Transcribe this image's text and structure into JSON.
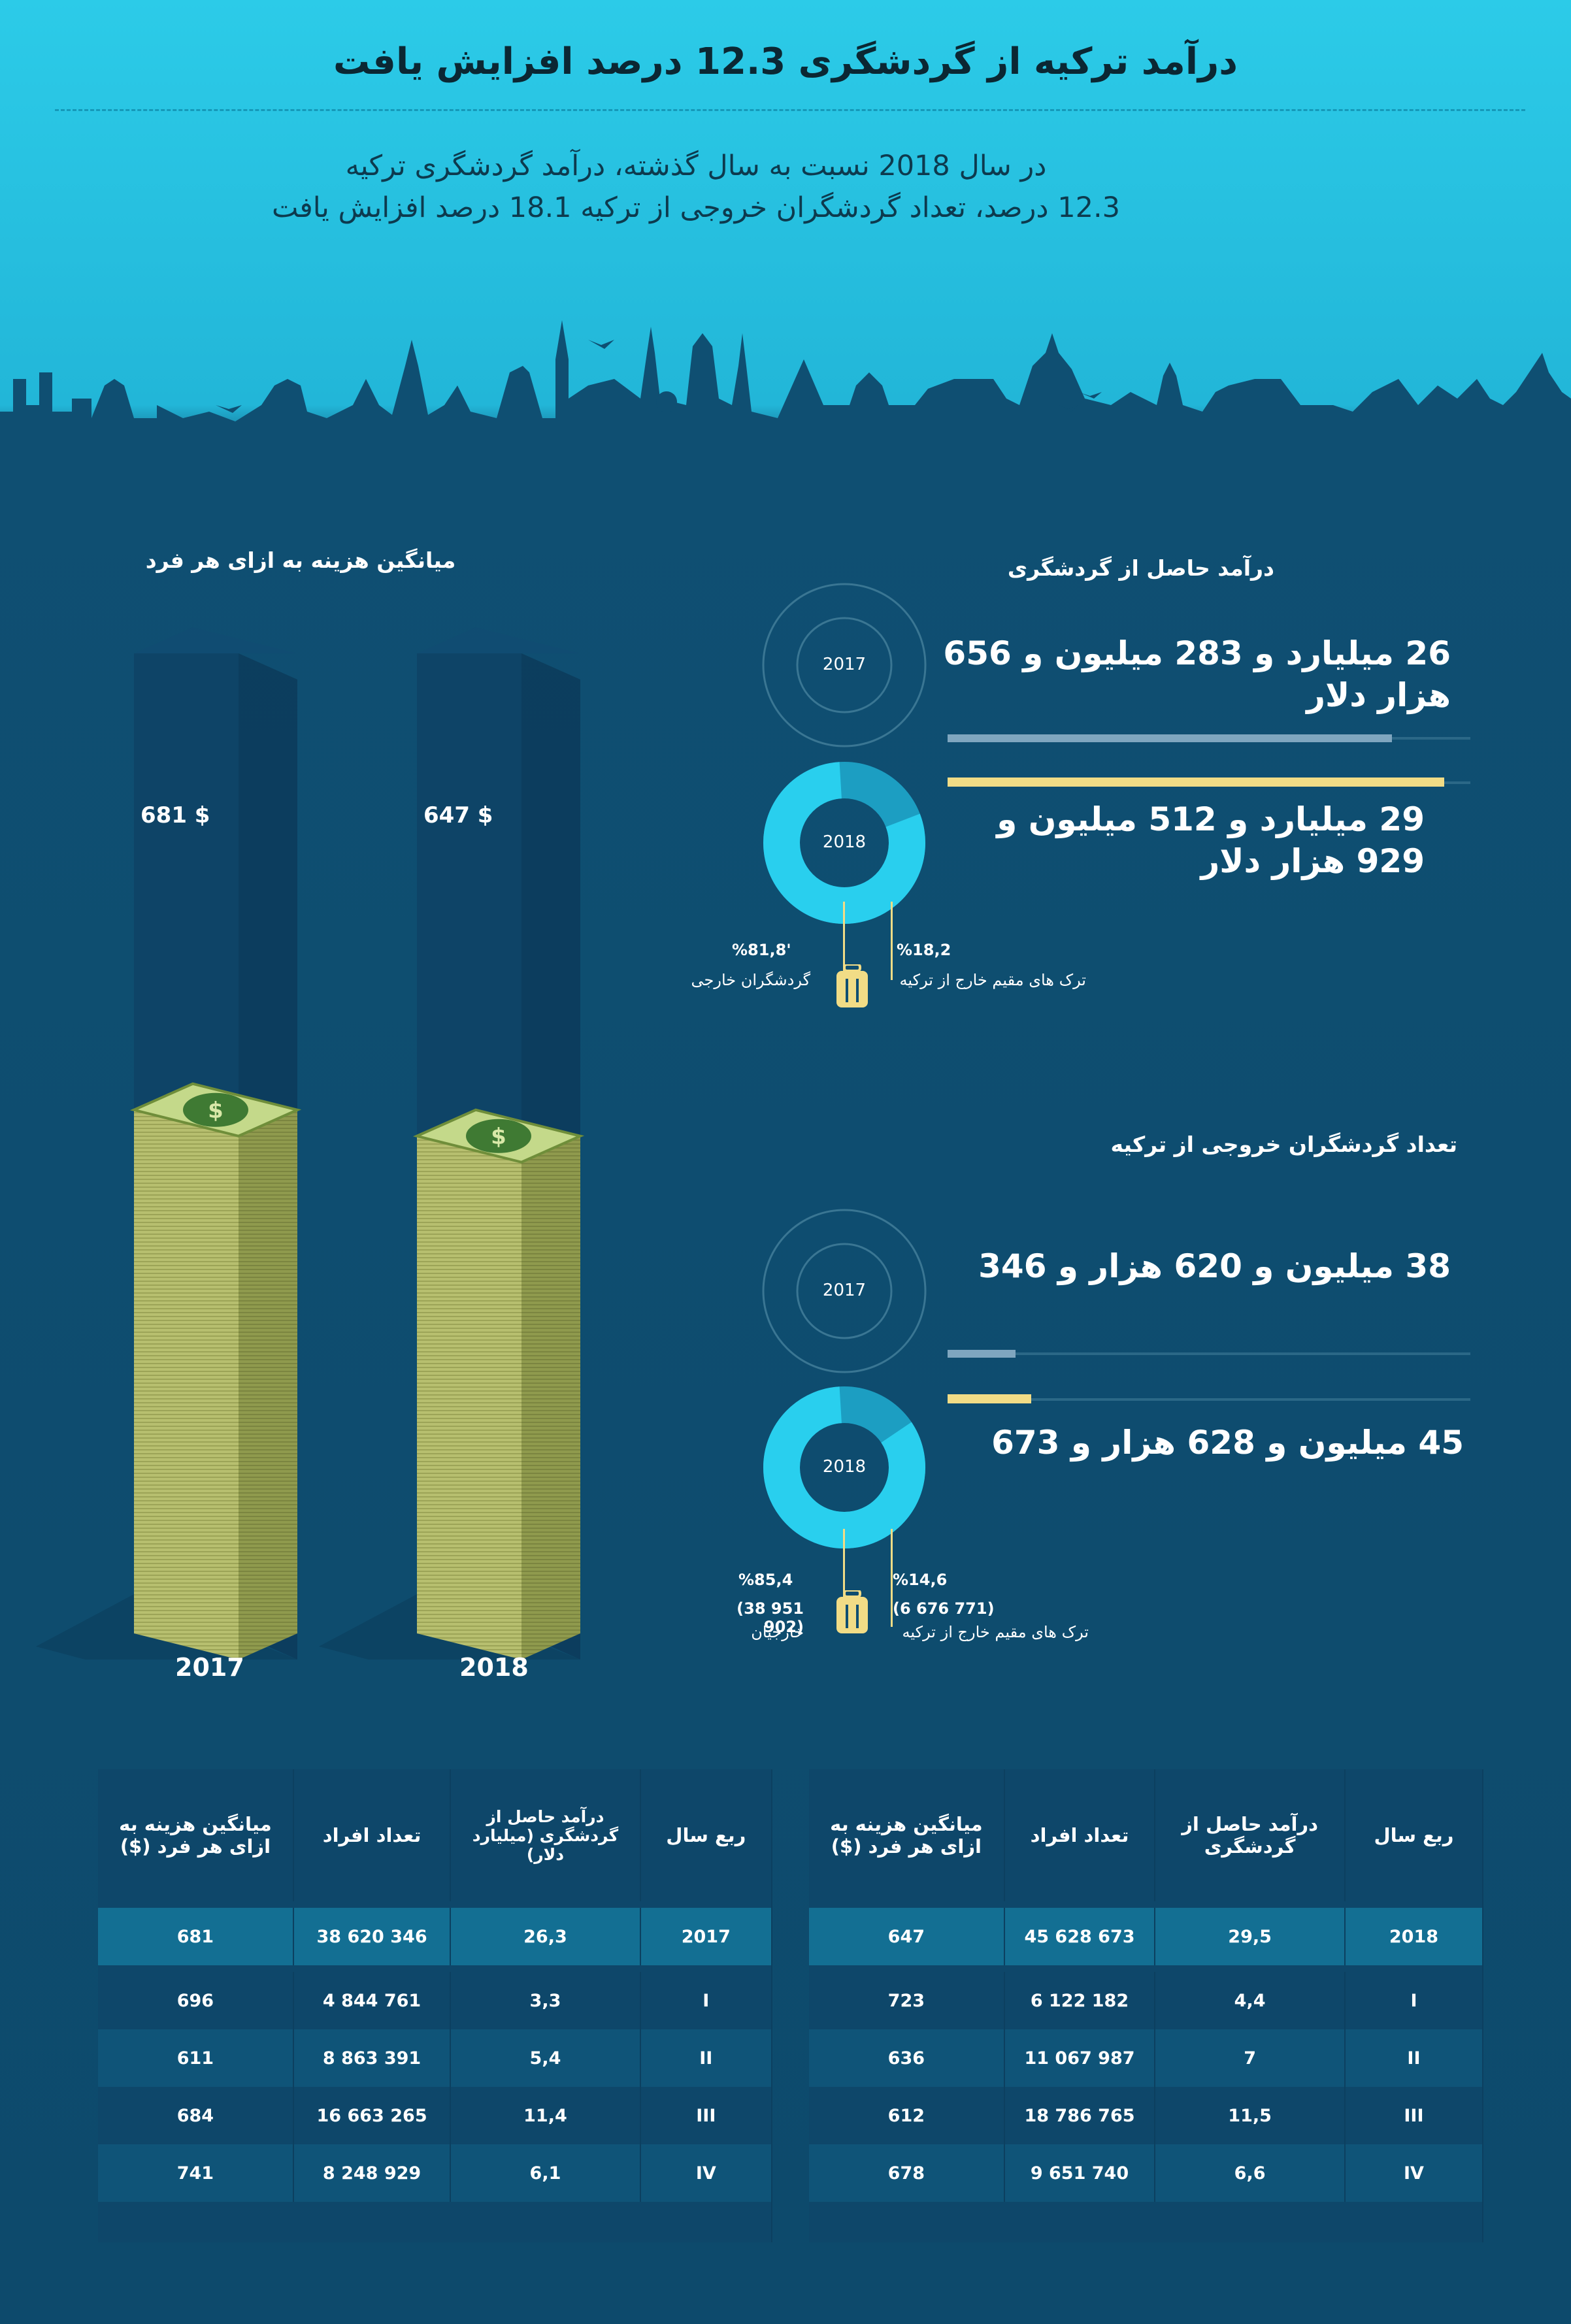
{
  "header": {
    "title": "درآمد ترکیه از گردشگری 12.3 درصد افزایش یافت",
    "subtitle_line1": "در سال 2018 نسبت به سال گذشته، درآمد گردشگری ترکیه",
    "subtitle_line2": "12.3 درصد، تعداد گردشگران خروجی از ترکیه 18.1 درصد افزایش یافت"
  },
  "colors": {
    "accent": "#29cfee",
    "gold": "#f1dc86",
    "silver": "#7fa6bf",
    "bg": "#0f4f72"
  },
  "spend": {
    "title": "میانگین هزینه به ازای هر فرد",
    "towers": [
      {
        "year": "2017",
        "value_label": "681 $",
        "value": 681
      },
      {
        "year": "2018",
        "value_label": "647 $",
        "value": 647
      }
    ]
  },
  "revenue": {
    "title": "درآمد حاصل از گردشگری",
    "y2017": "2017",
    "y2018": "2018",
    "value_2017": "26 میلیارد و 283 میلیون و 656 هزار دلار",
    "value_2018": "29 میلیارد و 512 میلیون و 929 هزار دلار",
    "bar_2017_fraction": 0.85,
    "bar_2018_fraction": 0.95,
    "split_left_pct": "%81,8'",
    "split_left_label": "گردشگران خارجی",
    "split_right_pct": "%18,2",
    "split_right_label": "ترک های مقیم خارج از ترکیه",
    "donut_fraction": 0.818,
    "icon": "suitcase-icon"
  },
  "visitors": {
    "title": "تعداد گردشگران خروجی از ترکیه",
    "y2017": "2017",
    "y2018": "2018",
    "value_2017": "38 میلیون و 620 هزار و 346",
    "value_2018": "45 میلیون و 628 هزار و 673",
    "bar_2017_fraction": 0.13,
    "bar_2018_fraction": 0.16,
    "split_left_pct": "%85,4",
    "split_left_count": "(38 951 902)",
    "split_left_label": "خارجیان",
    "split_right_pct": "%14,6",
    "split_right_count": "(6 676 771)",
    "split_right_label": "ترک های مقیم خارج از ترکیه",
    "donut_fraction": 0.854,
    "icon": "suitcase-icon"
  },
  "table_2017": {
    "headers": [
      "میانگین هزینه به ازای هر فرد ($)",
      "تعداد افراد",
      "درآمد حاصل از گردشگری (میلیارد دلار)",
      "ربع سال"
    ],
    "total": [
      "681",
      "38 620 346",
      "26,3",
      "2017"
    ],
    "rows": [
      [
        "696",
        "4 844 761",
        "3,3",
        "I"
      ],
      [
        "611",
        "8 863 391",
        "5,4",
        "II"
      ],
      [
        "684",
        "16 663 265",
        "11,4",
        "III"
      ],
      [
        "741",
        "8 248 929",
        "6,1",
        "IV"
      ]
    ]
  },
  "table_2018": {
    "headers": [
      "میانگین هزینه به ازای هر فرد ($)",
      "تعداد افراد",
      "درآمد حاصل از گردشگری",
      "ربع سال"
    ],
    "total": [
      "647",
      "45 628 673",
      "29,5",
      "2018"
    ],
    "rows": [
      [
        "723",
        "6 122 182",
        "4,4",
        "I"
      ],
      [
        "636",
        "11 067 987",
        "7",
        "II"
      ],
      [
        "612",
        "18 786 765",
        "11,5",
        "III"
      ],
      [
        "678",
        "9 651 740",
        "6,6",
        "IV"
      ]
    ]
  }
}
